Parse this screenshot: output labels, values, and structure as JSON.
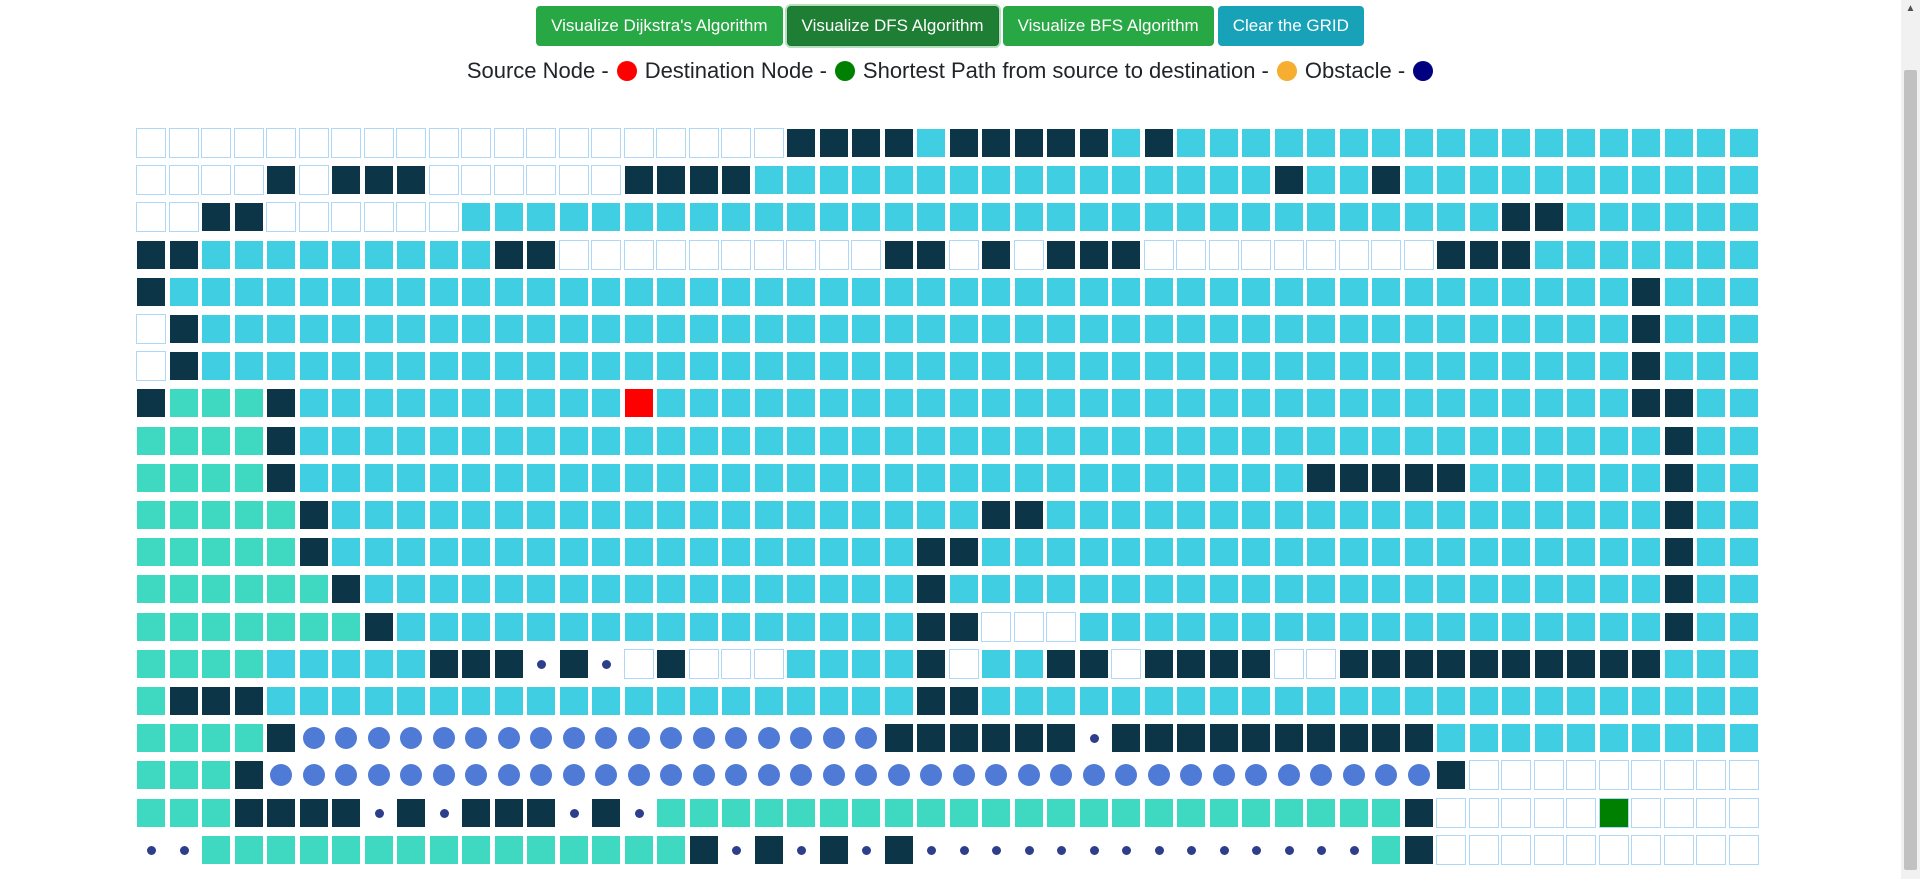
{
  "toolbar": {
    "buttons": [
      {
        "label": "Visualize Dijkstra's Algorithm"
      },
      {
        "label": "Visualize DFS Algorithm"
      },
      {
        "label": "Visualize BFS Algorithm"
      },
      {
        "label": "Clear the GRID"
      }
    ]
  },
  "legend": {
    "source": {
      "label": "Source Node -",
      "color": "#ff0000"
    },
    "destination": {
      "label": "Destination Node -",
      "color": "#008000"
    },
    "shortest_path": {
      "label": "Shortest Path from source to destination -",
      "color": "#f5ae2f"
    },
    "obstacle": {
      "label": "Obstacle -",
      "color": "#000080"
    }
  },
  "grid": {
    "columns": 50,
    "rows_count": 20,
    "cell_types": {
      "u": "unvisited",
      "v": "visited",
      "w": "wall",
      "g": "visited-teal",
      "s": "source",
      "d": "destination",
      "p": "frontier-large",
      "t": "frontier-small"
    },
    "rows": [
      "uuuuuuuuuuuuuuuuuuuuwwwwvwwwwwvwvvvvvvvvvvvvvvvvvv",
      "uuuuwuwwwuuuuuuwwwwvvvvvvvvvvvvvvvvwvvwvvvvvvvvvvv",
      "uuwwuuuuuuvvvvvvvvvvvvvvvvvvvvvvvvvvvvvvvvwwvvvvvv",
      "wwvvvvvvvvvwwuuuuuuuuuuwwuwuwwwuuuuuuuuuwwwvvvvvvv",
      "wvvvvvvvvvvvvvvvvvvvvvvvvvvvvvvvvvvvvvvvvvvvvvwvvv",
      "uwvvvvvvvvvvvvvvvvvvvvvvvvvvvvvvvvvvvvvvvvvvvvwvvv",
      "uwvvvvvvvvvvvvvvvvvvvvvvvvvvvvvvvvvvvvvvvvvvvvwvvv",
      "wgggwvvvvvvvvvvsvvvvvvvvvvvvvvvvvvvvvvvvvvvvvvwwvv",
      "ggggwvvvvvvvvvvvvvvvvvvvvvvvvvvvvvvvvvvvvvvvvvvwvv",
      "ggggwvvvvvvvvvvvvvvvvvvvvvvvvvvvvvvvwwwwwvvvvvvwvv",
      "gggggwvvvvvvvvvvvvvvvvvvvvwwvvvvvvvvvvvvvvvvvvvwvv",
      "gggggwvvvvvvvvvvvvvvvvvvwwvvvvvvvvvvvvvvvvvvvvvwvv",
      "ggggggwvvvvvvvvvvvvvvvvvwvvvvvvvvvvvvvvvvvvvvvvwvv",
      "gggggggwvvvvvvvvvvvvvvvvwwuuuvvvvvvvvvvvvvvvvvvwvv",
      "ggggvvvvvwwwtwtuwuuuvvvvwuvvwwuwwwwuuwwwwwwwwwwvvv",
      "gwwwvvvvvvvvvvvvvvvvvvvvwwvvvvvvvvvvvvvvvvvvvvvvvv",
      "ggggwppppppppppppppppppwwwwwwtwwwwwwwwwwvvvvvvvvvv",
      "gggwppppppppppppppppppppppppppppppppppppwuuuuuuuuu",
      "gggwwwwtwtwwwtwtgggggggggggggggggggggggwuuuuudu uuu",
      "ttgggggggggggggggwtwtwtwttttttttttttttgwuuuuuuuuuu"
    ]
  }
}
